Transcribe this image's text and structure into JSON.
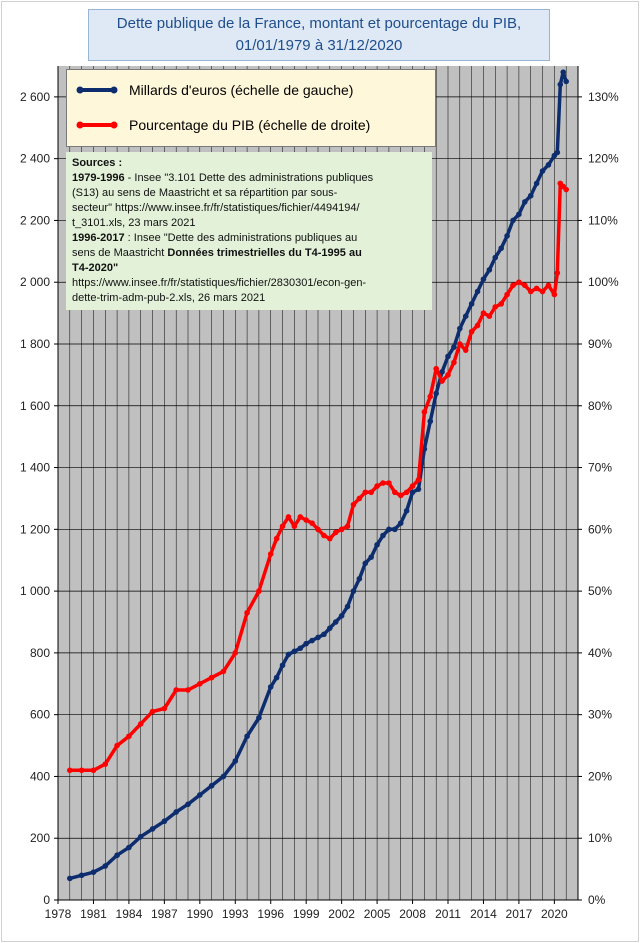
{
  "title": {
    "line1": "Dette publique de la France, montant et pourcentage du PIB,",
    "line2": "01/01/1979 à 31/12/2020"
  },
  "legend": {
    "entry1": "Millards d'euros (échelle de gauche)",
    "entry2": "Pourcentage du PIB (échelle de droite)"
  },
  "sources": {
    "heading": "Sources :",
    "l1_bold": "1979-1996",
    "l1_rest": " - Insee \"3.101 Dette des administrations publiques",
    "l2": "(S13) au sens de Maastricht et sa répartition par sous-",
    "l3": "secteur\" https://www.insee.fr/fr/statistiques/fichier/4494194/",
    "l4": "t_3101.xls, 23 mars 2021",
    "l5_bold": "1996-2017",
    "l5_rest": " : Insee \"Dette des administrations publiques au",
    "l6_plain": "sens de Maastricht ",
    "l6_bold": "Données trimestrielles du T4-1995 au",
    "l7_bold": "T4-2020\"",
    "l8": "https://www.insee.fr/fr/statistiques/fichier/2830301/econ-gen-",
    "l9": "dette-trim-adm-pub-2.xls, 26 mars 2021"
  },
  "colors": {
    "debt_series": "#0d2d6e",
    "pct_series": "#ff0000",
    "plot_bg": "#c0c0c0",
    "grid": "#000000"
  },
  "chart_data": {
    "type": "line",
    "x_axis": {
      "min": 1978,
      "max": 2022,
      "tick_labels": [
        "1978",
        "1981",
        "1984",
        "1987",
        "1990",
        "1993",
        "1996",
        "1999",
        "2002",
        "2005",
        "2008",
        "2011",
        "2014",
        "2017",
        "2020"
      ]
    },
    "y_left": {
      "min": 0,
      "max": 2700,
      "step": 200,
      "tick_labels": [
        "0",
        "200",
        "400",
        "600",
        "800",
        "1 000",
        "1 200",
        "1 400",
        "1 600",
        "1 800",
        "2 000",
        "2 200",
        "2 400",
        "2 600"
      ]
    },
    "y_right": {
      "min": 0,
      "max": 135,
      "step": 10,
      "tick_labels": [
        "0%",
        "10%",
        "20%",
        "30%",
        "40%",
        "50%",
        "60%",
        "70%",
        "80%",
        "90%",
        "100%",
        "110%",
        "120%",
        "130%"
      ]
    },
    "grid": true,
    "legend_position": "top-left",
    "series": [
      {
        "name": "Millards d'euros (échelle de gauche)",
        "axis": "left",
        "x": [
          1979,
          1980,
          1981,
          1982,
          1983,
          1984,
          1985,
          1986,
          1987,
          1988,
          1989,
          1990,
          1991,
          1992,
          1993,
          1994,
          1995,
          1996,
          1996.5,
          1997,
          1997.5,
          1998,
          1998.5,
          1999,
          1999.5,
          2000,
          2000.5,
          2001,
          2001.5,
          2002,
          2002.5,
          2003,
          2003.5,
          2004,
          2004.5,
          2005,
          2005.5,
          2006,
          2006.5,
          2007,
          2007.5,
          2008,
          2008.5,
          2009,
          2009.5,
          2010,
          2010.5,
          2011,
          2011.5,
          2012,
          2012.5,
          2013,
          2013.5,
          2014,
          2014.5,
          2015,
          2015.5,
          2016,
          2016.5,
          2017,
          2017.5,
          2018,
          2018.5,
          2019,
          2019.5,
          2020,
          2020.25,
          2020.5,
          2020.75,
          2021
        ],
        "y": [
          70,
          80,
          90,
          110,
          145,
          170,
          205,
          230,
          255,
          285,
          310,
          340,
          370,
          400,
          450,
          530,
          590,
          690,
          720,
          760,
          795,
          805,
          815,
          830,
          840,
          850,
          860,
          880,
          900,
          920,
          950,
          1000,
          1040,
          1090,
          1110,
          1150,
          1180,
          1200,
          1200,
          1220,
          1260,
          1320,
          1330,
          1460,
          1550,
          1640,
          1710,
          1760,
          1790,
          1850,
          1890,
          1930,
          1970,
          2010,
          2040,
          2080,
          2110,
          2150,
          2200,
          2220,
          2260,
          2280,
          2320,
          2360,
          2380,
          2410,
          2420,
          2640,
          2680,
          2650
        ]
      },
      {
        "name": "Pourcentage du PIB (échelle de droite)",
        "axis": "right",
        "x": [
          1979,
          1980,
          1981,
          1982,
          1983,
          1984,
          1985,
          1986,
          1987,
          1988,
          1989,
          1990,
          1991,
          1992,
          1993,
          1994,
          1995,
          1996,
          1996.5,
          1997,
          1997.5,
          1998,
          1998.5,
          1999,
          1999.5,
          2000,
          2000.5,
          2001,
          2001.5,
          2002,
          2002.5,
          2003,
          2003.5,
          2004,
          2004.5,
          2005,
          2005.5,
          2006,
          2006.5,
          2007,
          2007.5,
          2008,
          2008.5,
          2009,
          2009.5,
          2010,
          2010.5,
          2011,
          2011.5,
          2012,
          2012.5,
          2013,
          2013.5,
          2014,
          2014.5,
          2015,
          2015.5,
          2016,
          2016.5,
          2017,
          2017.5,
          2018,
          2018.5,
          2019,
          2019.5,
          2020,
          2020.25,
          2020.5,
          2020.75,
          2021
        ],
        "y": [
          21,
          21,
          21,
          22,
          25,
          26.5,
          28.5,
          30.5,
          31,
          34,
          34,
          35,
          36,
          37,
          40,
          46.5,
          50,
          56,
          58.5,
          60.5,
          62,
          60.5,
          62,
          61.5,
          61,
          60,
          59,
          58.5,
          59.5,
          60,
          60.5,
          64,
          65,
          66,
          66,
          67,
          67.5,
          67.5,
          66,
          65.5,
          66,
          67,
          68,
          79,
          81.5,
          86,
          84,
          85,
          87,
          90,
          89,
          92,
          93,
          95,
          94.5,
          96,
          96.5,
          98,
          99.5,
          100,
          99.5,
          98.5,
          99,
          98.5,
          99.5,
          98,
          101.5,
          116,
          115.5,
          115
        ]
      }
    ]
  }
}
